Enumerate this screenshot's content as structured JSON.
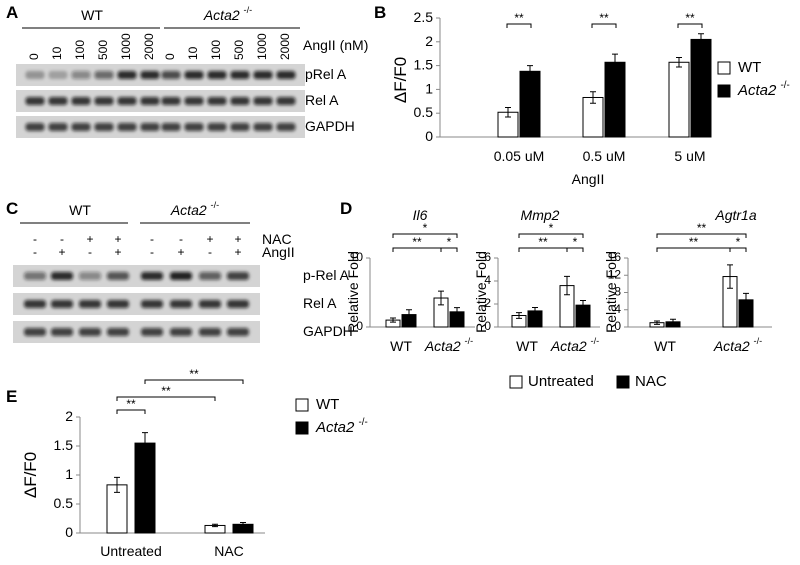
{
  "panel_labels": [
    "A",
    "B",
    "C",
    "D",
    "E"
  ],
  "blot_a": {
    "groups": [
      "WT",
      "Acta2 -/-"
    ],
    "lanes": [
      0,
      10,
      100,
      500,
      1000,
      2000,
      0,
      10,
      100,
      500,
      1000,
      2000
    ],
    "treatment": "AngII (nM)",
    "rows": [
      "pRel A",
      "Rel A",
      "GAPDH"
    ]
  },
  "blot_c": {
    "groups": [
      "WT",
      "Acta2 -/-"
    ],
    "treatment_rows": [
      {
        "name": "NAC",
        "signs": [
          "-",
          "-",
          "+",
          "+",
          "-",
          "-",
          "+",
          "+"
        ]
      },
      {
        "name": "AngII",
        "signs": [
          "-",
          "+",
          "-",
          "+",
          "-",
          "+",
          "-",
          "+"
        ]
      }
    ],
    "rows": [
      "p-Rel A",
      "Rel A",
      "GAPDH"
    ]
  },
  "chart_data": [
    {
      "type": "bar",
      "y_label": "ΔF/F0",
      "x_label": "AngII",
      "categories": [
        "0.05 uM",
        "0.5 uM",
        "5 uM"
      ],
      "ylim": [
        0,
        2.5
      ],
      "yticks": [
        0,
        0.5,
        1,
        1.5,
        2,
        2.5
      ],
      "series": [
        {
          "name": "WT",
          "color": "#ffffff",
          "values": [
            0.52,
            0.83,
            1.57
          ],
          "errors": [
            0.1,
            0.12,
            0.1
          ]
        },
        {
          "name": "Acta2 -/-",
          "color": "#000000",
          "values": [
            1.38,
            1.57,
            2.05
          ],
          "errors": [
            0.12,
            0.17,
            0.12
          ]
        }
      ],
      "annotations": [
        "**",
        "**",
        "**"
      ]
    },
    {
      "type": "bar",
      "title": "Il6",
      "y_label": "Relative Fold",
      "categories": [
        "WT",
        "Acta2 -/-"
      ],
      "ylim": [
        0,
        10
      ],
      "yticks": [
        0,
        10
      ],
      "series": [
        {
          "name": "Untreated",
          "color": "#ffffff",
          "values": [
            1.0,
            4.2
          ],
          "errors": [
            0.3,
            1.0
          ]
        },
        {
          "name": "NAC",
          "color": "#000000",
          "values": [
            1.8,
            2.2
          ],
          "errors": [
            0.7,
            0.6
          ]
        }
      ],
      "annotations": [
        "*",
        "**",
        "*"
      ]
    },
    {
      "type": "bar",
      "title": "Mmp2",
      "y_label": "Relative Fold",
      "categories": [
        "WT",
        "Acta2 -/-"
      ],
      "ylim": [
        0,
        6
      ],
      "yticks": [
        0,
        2,
        4,
        6
      ],
      "series": [
        {
          "color": "#ffffff",
          "values": [
            1.0,
            3.6
          ],
          "errors": [
            0.25,
            0.8
          ]
        },
        {
          "color": "#000000",
          "values": [
            1.4,
            1.9
          ],
          "errors": [
            0.3,
            0.4
          ]
        }
      ],
      "annotations": [
        "*",
        "**",
        "*"
      ]
    },
    {
      "type": "bar",
      "title": "Agtr1a",
      "y_label": "Relative Fold",
      "categories": [
        "WT",
        "Acta2 -/-"
      ],
      "ylim": [
        0,
        16
      ],
      "yticks": [
        0,
        4,
        8,
        12,
        16
      ],
      "series": [
        {
          "color": "#ffffff",
          "values": [
            1.0,
            11.7
          ],
          "errors": [
            0.4,
            2.7
          ]
        },
        {
          "color": "#000000",
          "values": [
            1.2,
            6.3
          ],
          "errors": [
            0.6,
            1.5
          ]
        }
      ],
      "annotations": [
        "**",
        "**",
        "*"
      ]
    },
    {
      "type": "bar",
      "y_label": "ΔF/F0",
      "categories": [
        "Untreated",
        "NAC"
      ],
      "ylim": [
        0,
        2
      ],
      "yticks": [
        0,
        0.5,
        1,
        1.5,
        2
      ],
      "series": [
        {
          "name": "WT",
          "color": "#ffffff",
          "values": [
            0.83,
            0.13
          ],
          "errors": [
            0.13,
            0.02
          ]
        },
        {
          "name": "Acta2 -/-",
          "color": "#000000",
          "values": [
            1.55,
            0.15
          ],
          "errors": [
            0.18,
            0.03
          ]
        }
      ],
      "annotations": [
        "**",
        "**",
        "**"
      ]
    }
  ]
}
